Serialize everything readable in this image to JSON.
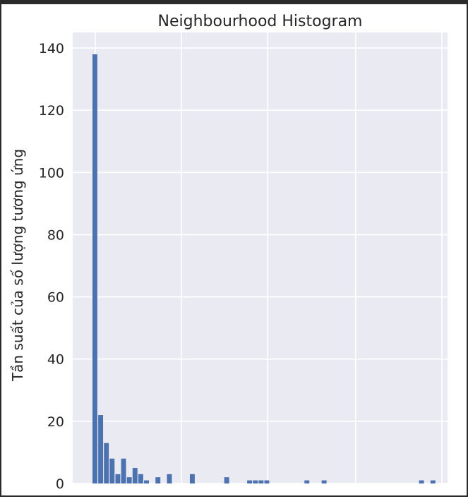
{
  "chart_data": {
    "type": "bar",
    "title": "Neighbourhood Histogram",
    "xlabel": "",
    "ylabel": "Tần suất của số lượng tương ứng",
    "ylim": [
      0,
      145
    ],
    "y_ticks": [
      0,
      20,
      40,
      60,
      80,
      100,
      120,
      140
    ],
    "x_tick_labels_visible": false,
    "grid": true,
    "background": "#eaeaf2",
    "bar_color": "#4c72b0",
    "bins": 60,
    "values": [
      138,
      22,
      13,
      8,
      3,
      8,
      2,
      5,
      3,
      1,
      0,
      2,
      0,
      3,
      0,
      0,
      0,
      3,
      0,
      0,
      0,
      0,
      0,
      2,
      0,
      0,
      0,
      1,
      1,
      1,
      1,
      0,
      0,
      0,
      0,
      0,
      0,
      1,
      0,
      0,
      1,
      0,
      0,
      0,
      0,
      0,
      0,
      0,
      0,
      0,
      0,
      0,
      0,
      0,
      0,
      0,
      0,
      1,
      0,
      1
    ]
  }
}
